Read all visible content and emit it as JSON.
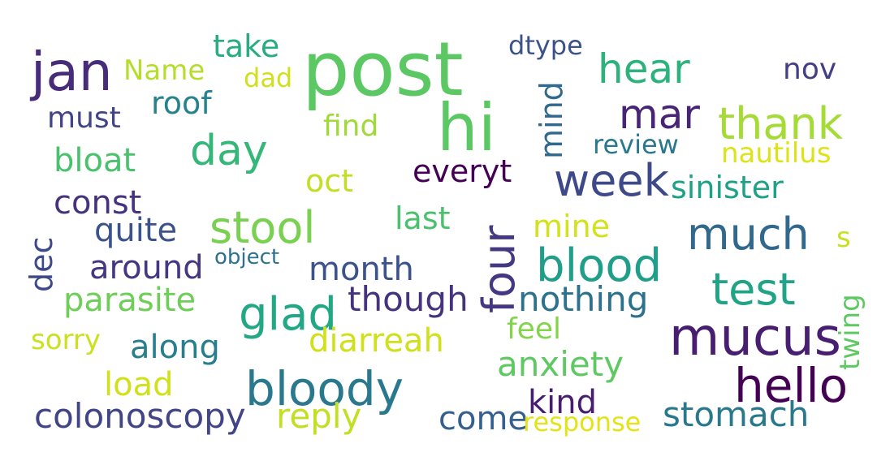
{
  "words": [
    {
      "text": "post",
      "color": "#5cc863"
    },
    {
      "text": "hi",
      "color": "#5cc863"
    },
    {
      "text": "jan",
      "color": "#472c7a"
    },
    {
      "text": "take",
      "color": "#27ad81"
    },
    {
      "text": "Name",
      "color": "#b5de2b"
    },
    {
      "text": "dad",
      "color": "#d0e11c"
    },
    {
      "text": "dtype",
      "color": "#3b528b"
    },
    {
      "text": "hear",
      "color": "#2db27d"
    },
    {
      "text": "nov",
      "color": "#433e85"
    },
    {
      "text": "roof",
      "color": "#26828e"
    },
    {
      "text": "must",
      "color": "#414487"
    },
    {
      "text": "find",
      "color": "#a0da39"
    },
    {
      "text": "mind",
      "color": "#31688e"
    },
    {
      "text": "mar",
      "color": "#482475"
    },
    {
      "text": "thank",
      "color": "#a5db36"
    },
    {
      "text": "day",
      "color": "#35b779"
    },
    {
      "text": "review",
      "color": "#2a788e"
    },
    {
      "text": "nautilus",
      "color": "#dde318"
    },
    {
      "text": "bloat",
      "color": "#4ac16d"
    },
    {
      "text": "everyt",
      "color": "#440154"
    },
    {
      "text": "oct",
      "color": "#c2df23"
    },
    {
      "text": "week",
      "color": "#3e4989"
    },
    {
      "text": "sinister",
      "color": "#1fa187"
    },
    {
      "text": "const",
      "color": "#46327e"
    },
    {
      "text": "stool",
      "color": "#7ad151"
    },
    {
      "text": "last",
      "color": "#4ac16d"
    },
    {
      "text": "four",
      "color": "#453781"
    },
    {
      "text": "mine",
      "color": "#d2e21b"
    },
    {
      "text": "much",
      "color": "#31688e"
    },
    {
      "text": "quite",
      "color": "#3b528b"
    },
    {
      "text": "s",
      "color": "#c8e020"
    },
    {
      "text": "dec",
      "color": "#3e4989"
    },
    {
      "text": "object",
      "color": "#2c728e"
    },
    {
      "text": "around",
      "color": "#453781"
    },
    {
      "text": "month",
      "color": "#3b528b"
    },
    {
      "text": "blood",
      "color": "#1f9e89"
    },
    {
      "text": "test",
      "color": "#20a386"
    },
    {
      "text": "parasite",
      "color": "#6ece58"
    },
    {
      "text": "glad",
      "color": "#22a884"
    },
    {
      "text": "though",
      "color": "#46337e"
    },
    {
      "text": "nothing",
      "color": "#2c728e"
    },
    {
      "text": "twing",
      "color": "#5ec962"
    },
    {
      "text": "sorry",
      "color": "#cae11f"
    },
    {
      "text": "along",
      "color": "#287d8e"
    },
    {
      "text": "diarreah",
      "color": "#d0e11c"
    },
    {
      "text": "feel",
      "color": "#84d44b"
    },
    {
      "text": "mucus",
      "color": "#481f70"
    },
    {
      "text": "anxiety",
      "color": "#5ec962"
    },
    {
      "text": "load",
      "color": "#d0e11c"
    },
    {
      "text": "bloody",
      "color": "#2a788e"
    },
    {
      "text": "hello",
      "color": "#440154"
    },
    {
      "text": "kind",
      "color": "#481c6e"
    },
    {
      "text": "colonoscopy",
      "color": "#414487"
    },
    {
      "text": "reply",
      "color": "#c2df23"
    },
    {
      "text": "come",
      "color": "#355f8d"
    },
    {
      "text": "response",
      "color": "#e2e418"
    },
    {
      "text": "stomach",
      "color": "#2a788e"
    }
  ]
}
